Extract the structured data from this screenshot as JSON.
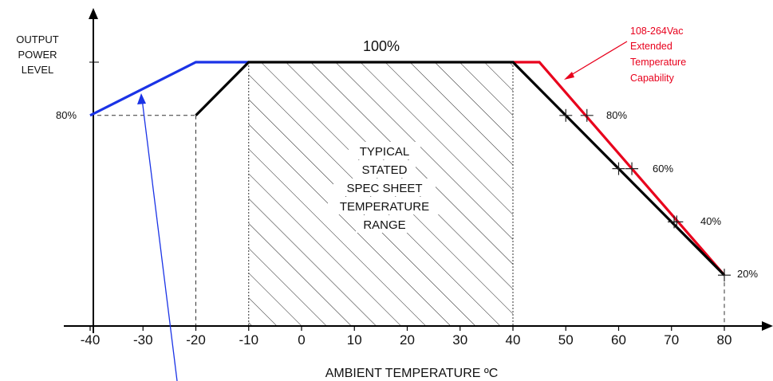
{
  "chart_data": {
    "type": "line",
    "xlabel": "AMBIENT TEMPERATURE ºC",
    "ylabel_lines": [
      "OUTPUT",
      "POWER",
      "LEVEL"
    ],
    "x_ticks": [
      -40,
      -30,
      -20,
      -10,
      0,
      10,
      20,
      30,
      40,
      50,
      60,
      70,
      80
    ],
    "xlim": [
      -40,
      80
    ],
    "ylim": [
      20,
      100
    ],
    "y_label_80": "80%",
    "label_100": "100%",
    "center_label_lines": [
      "TYPICAL",
      "STATED",
      "SPEC SHEET",
      "TEMPERATURE",
      "RANGE"
    ],
    "hatched_range": [
      -10,
      40
    ],
    "right_percent_labels": [
      {
        "text": "80%",
        "x": 53.5,
        "y": 80
      },
      {
        "text": "60%",
        "x": 62.5,
        "y": 60
      },
      {
        "text": "40%",
        "x": 71,
        "y": 40
      },
      {
        "text": "20%",
        "x": 80,
        "y": 20
      }
    ],
    "annotation_lines": [
      "108-264Vac",
      "Extended",
      "Temperature",
      "Capability"
    ],
    "series": [
      {
        "color": "#000000",
        "x": [
          -20,
          -10,
          40,
          80
        ],
        "y": [
          80,
          100,
          100,
          20
        ]
      },
      {
        "color": "#1a33e6",
        "x": [
          -40,
          -20,
          -10
        ],
        "y": [
          80,
          100,
          100
        ]
      },
      {
        "color": "#e8001c",
        "x": [
          40,
          45,
          80
        ],
        "y": [
          100,
          100,
          20
        ]
      }
    ],
    "markers": [
      {
        "x": 50,
        "y": 80
      },
      {
        "x": 54,
        "y": 80
      },
      {
        "x": 60,
        "y": 60
      },
      {
        "x": 62.5,
        "y": 60
      },
      {
        "x": 70.5,
        "y": 40
      },
      {
        "x": 71,
        "y": 40
      },
      {
        "x": 80,
        "y": 20
      }
    ],
    "grid": false
  },
  "colors": {
    "black": "#000000",
    "blue": "#1a33e6",
    "red": "#e8001c"
  }
}
